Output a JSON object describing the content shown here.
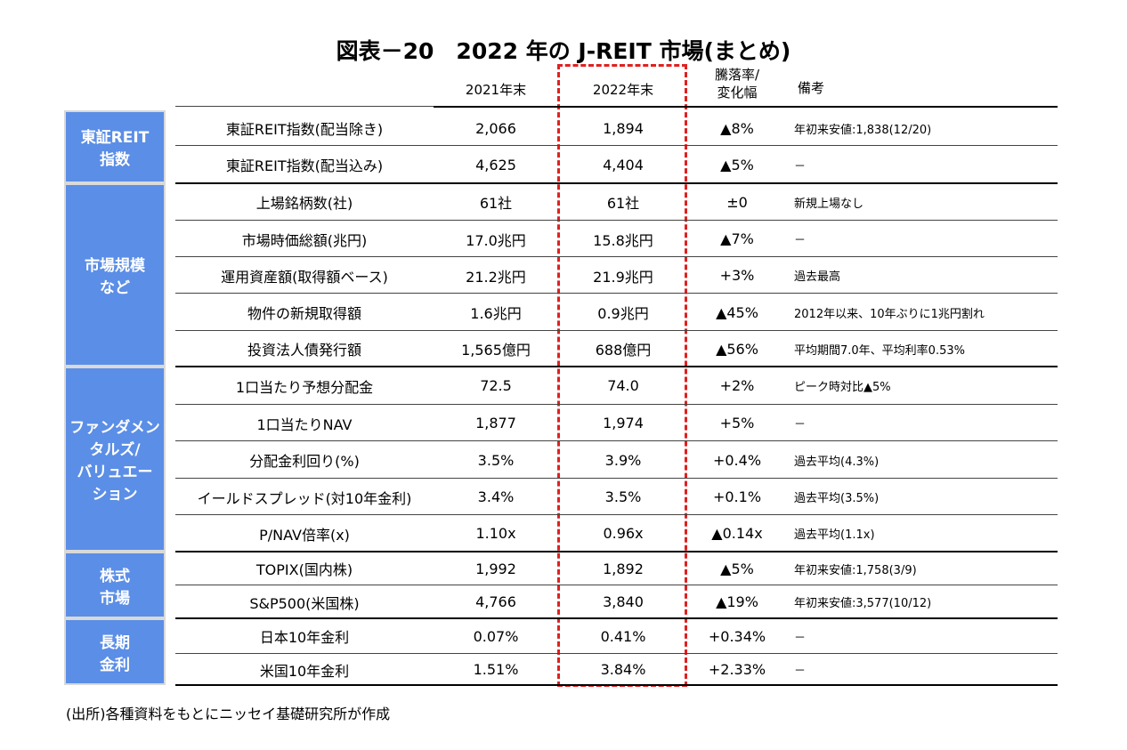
{
  "title": "図表－20　2022 年の J-REIT 市場(まとめ)",
  "header": {
    "col2021": "2021年末",
    "col2022": "2022年末",
    "change": [
      "騰落率/",
      "変化幅"
    ],
    "note": "備考"
  },
  "groups": [
    {
      "label": [
        "東証REIT",
        "指数"
      ],
      "rows": [
        [
          "東証REIT指数(配当除き)",
          "2,066",
          "1,894",
          "▲8%",
          "年初来安値:1,838(12/20)"
        ],
        [
          "東証REIT指数(配当込み)",
          "4,625",
          "4,404",
          "▲5%",
          "－"
        ]
      ]
    },
    {
      "label": [
        "市場規模",
        "など"
      ],
      "rows": [
        [
          "上場銘柄数(社)",
          "61社",
          "61社",
          "±0",
          "新規上場なし"
        ],
        [
          "市場時価総額(兆円)",
          "17.0兆円",
          "15.8兆円",
          "▲7%",
          "－"
        ],
        [
          "運用資産額(取得額ベース)",
          "21.2兆円",
          "21.9兆円",
          "+3%",
          "過去最高"
        ],
        [
          "物件の新規取得額",
          "1.6兆円",
          "0.9兆円",
          "▲45%",
          "2012年以来、10年ぶりに1兆円割れ"
        ],
        [
          "投資法人債発行額",
          "1,565億円",
          "688億円",
          "▲56%",
          "平均期間7.0年、平均利率0.53%"
        ]
      ]
    },
    {
      "label": [
        "ファンダメン",
        "タルズ/",
        "バリュエー",
        "ション"
      ],
      "rows": [
        [
          "1口当たり予想分配金",
          "72.5",
          "74.0",
          "+2%",
          "ピーク時対比▲5%"
        ],
        [
          "1口当たりNAV",
          "1,877",
          "1,974",
          "+5%",
          "－"
        ],
        [
          "分配金利回り(%)",
          "3.5%",
          "3.9%",
          "+0.4%",
          "過去平均(4.3%)"
        ],
        [
          "イールドスプレッド(対10年金利)",
          "3.4%",
          "3.5%",
          "+0.1%",
          "過去平均(3.5%)"
        ],
        [
          "P/NAV倍率(x)",
          "1.10x",
          "0.96x",
          "▲0.14x",
          "過去平均(1.1x)"
        ]
      ]
    },
    {
      "label": [
        "株式",
        "市場"
      ],
      "rows": [
        [
          "TOPIX(国内株)",
          "1,992",
          "1,892",
          "▲5%",
          "年初来安値:1,758(3/9)"
        ],
        [
          "S&P500(米国株)",
          "4,766",
          "3,840",
          "▲19%",
          "年初来安値:3,577(10/12)"
        ]
      ]
    },
    {
      "label": [
        "長期",
        "金利"
      ],
      "rows": [
        [
          "日本10年金利",
          "0.07%",
          "0.41%",
          "+0.34%",
          "－"
        ],
        [
          "米国10年金利",
          "1.51%",
          "3.84%",
          "+2.33%",
          "－"
        ]
      ]
    }
  ],
  "source": "(出所)各種資料をもとにニッセイ基礎研究所が作成"
}
